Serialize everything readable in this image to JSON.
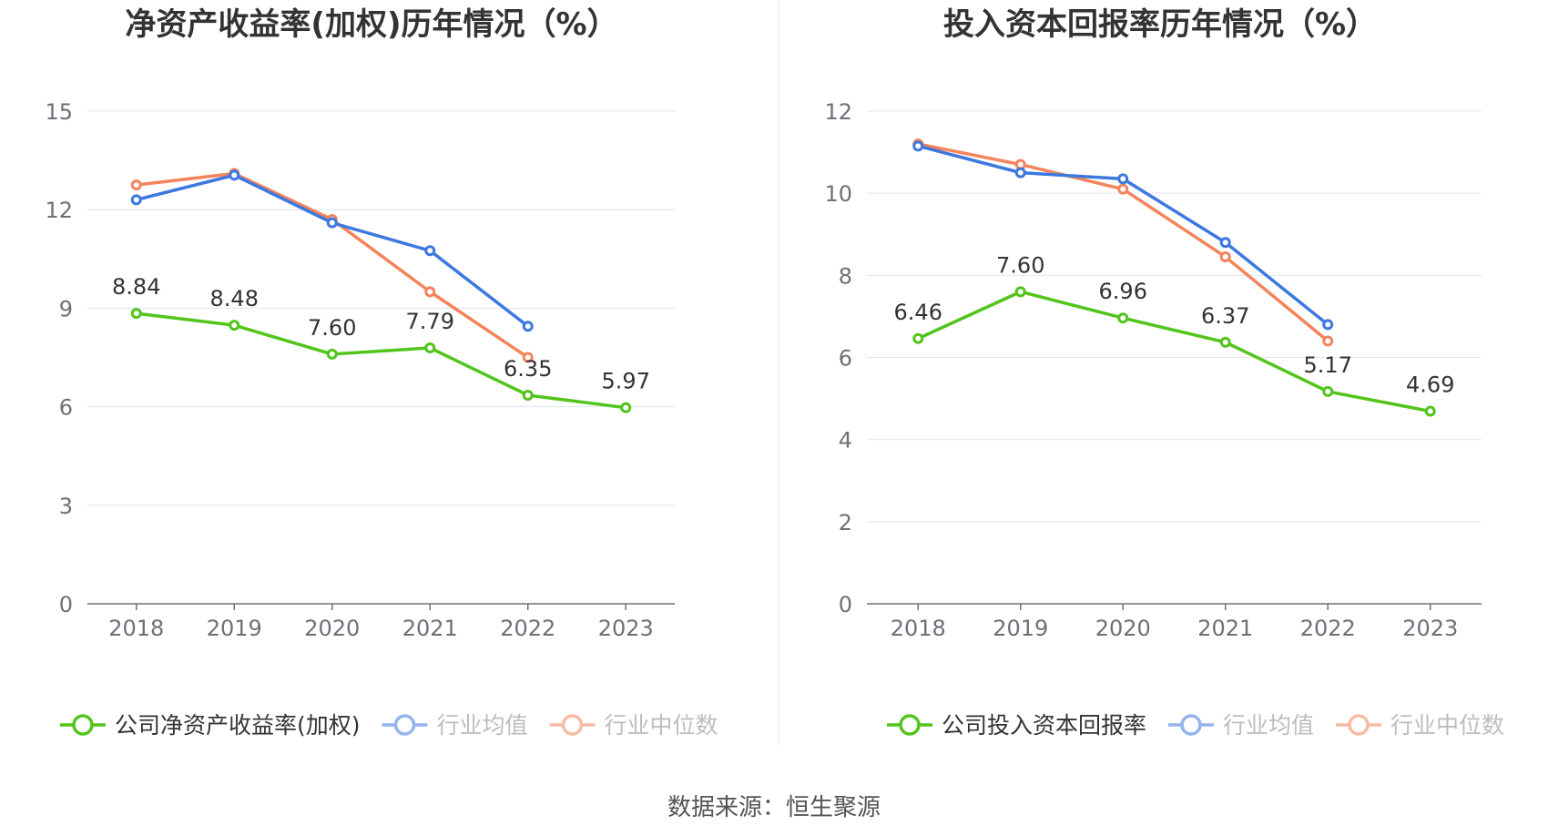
{
  "source": "数据来源：恒生聚源",
  "colors": {
    "company": "#52c41a",
    "avg": "#3c78e0",
    "median": "#f4845c"
  },
  "chart_data": [
    {
      "type": "line",
      "title": "净资产收益率(加权)历年情况（%）",
      "categories": [
        "2018",
        "2019",
        "2020",
        "2021",
        "2022",
        "2023"
      ],
      "ylim": [
        0,
        15
      ],
      "yticks": [
        "0",
        "3",
        "6",
        "9",
        "12",
        "15"
      ],
      "grid": true,
      "legend_position": "bottom",
      "series": [
        {
          "name": "公司净资产收益率(加权)",
          "values": [
            8.84,
            8.48,
            7.6,
            7.79,
            6.35,
            5.97
          ],
          "labels": [
            "8.84",
            "8.48",
            "7.60",
            "7.79",
            "6.35",
            "5.97"
          ]
        },
        {
          "name": "行业均值",
          "values": [
            12.3,
            13.05,
            11.6,
            10.75,
            8.45,
            null
          ]
        },
        {
          "name": "行业中位数",
          "values": [
            12.75,
            13.1,
            11.7,
            9.5,
            7.5,
            null
          ]
        }
      ]
    },
    {
      "type": "line",
      "title": "投入资本回报率历年情况（%）",
      "categories": [
        "2018",
        "2019",
        "2020",
        "2021",
        "2022",
        "2023"
      ],
      "ylim": [
        0,
        12
      ],
      "yticks": [
        "0",
        "2",
        "4",
        "6",
        "8",
        "10",
        "12"
      ],
      "grid": true,
      "legend_position": "bottom",
      "series": [
        {
          "name": "公司投入资本回报率",
          "values": [
            6.46,
            7.6,
            6.96,
            6.37,
            5.17,
            4.69
          ],
          "labels": [
            "6.46",
            "7.60",
            "6.96",
            "6.37",
            "5.17",
            "4.69"
          ]
        },
        {
          "name": "行业均值",
          "values": [
            11.15,
            10.5,
            10.35,
            8.8,
            6.8,
            null
          ]
        },
        {
          "name": "行业中位数",
          "values": [
            11.2,
            10.7,
            10.1,
            8.45,
            6.4,
            null
          ]
        }
      ]
    }
  ]
}
